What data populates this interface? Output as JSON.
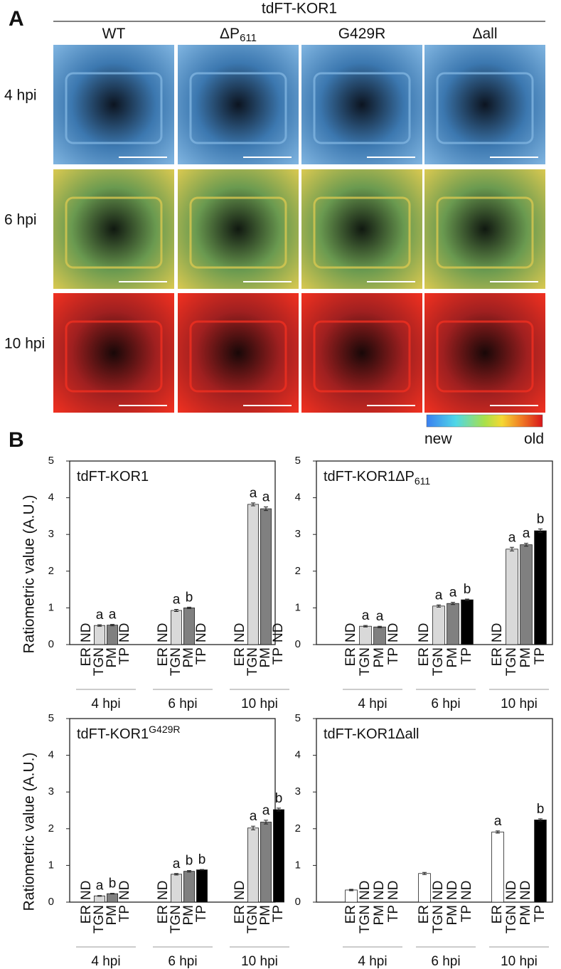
{
  "panel_a": {
    "label": "A",
    "construct": "tdFT-KOR1",
    "columns": [
      {
        "text": "WT"
      },
      {
        "text": "ΔP",
        "subscript": "611"
      },
      {
        "text": "G429R"
      },
      {
        "text": "Δall"
      }
    ],
    "rows": [
      "4 hpi",
      "6 hpi",
      "10 hpi"
    ],
    "colorbar": {
      "low": "new",
      "high": "old"
    }
  },
  "panel_b_label": "B",
  "chart_data": [
    {
      "type": "bar",
      "title": "tdFT-KOR1",
      "ylabel": "Ratiometric value (A.U.)",
      "ylim": [
        0,
        5
      ],
      "yticks": [
        0,
        1,
        2,
        3,
        4,
        5
      ],
      "groups": [
        "4 hpi",
        "6 hpi",
        "10 hpi"
      ],
      "series": [
        {
          "name": "ER",
          "color": "#ffffff",
          "values": [
            null,
            null,
            null
          ],
          "errors": [
            null,
            null,
            null
          ],
          "labels": [
            "ND",
            "ND",
            "ND"
          ]
        },
        {
          "name": "TGN",
          "color": "#d9d9d9",
          "values": [
            0.52,
            0.93,
            3.82
          ],
          "errors": [
            0.02,
            0.03,
            0.04
          ],
          "labels": [
            "a",
            "a",
            "a"
          ]
        },
        {
          "name": "PM",
          "color": "#808080",
          "values": [
            0.53,
            1.0,
            3.7
          ],
          "errors": [
            0.02,
            0.02,
            0.05
          ],
          "labels": [
            "a",
            "b",
            "a"
          ]
        },
        {
          "name": "TP",
          "color": "#000000",
          "values": [
            null,
            null,
            null
          ],
          "errors": [
            null,
            null,
            null
          ],
          "labels": [
            "ND",
            "ND",
            "ND"
          ]
        }
      ]
    },
    {
      "type": "bar",
      "title": "tdFT-KOR1ΔP",
      "title_subscript": "611",
      "ylim": [
        0,
        5
      ],
      "yticks": [
        0,
        1,
        2,
        3,
        4,
        5
      ],
      "groups": [
        "4 hpi",
        "6 hpi",
        "10 hpi"
      ],
      "series": [
        {
          "name": "ER",
          "color": "#ffffff",
          "values": [
            null,
            null,
            null
          ],
          "errors": [
            null,
            null,
            null
          ],
          "labels": [
            "ND",
            "ND",
            "ND"
          ]
        },
        {
          "name": "TGN",
          "color": "#d9d9d9",
          "values": [
            0.5,
            1.05,
            2.6
          ],
          "errors": [
            0.02,
            0.03,
            0.05
          ],
          "labels": [
            "a",
            "a",
            "a"
          ]
        },
        {
          "name": "PM",
          "color": "#808080",
          "values": [
            0.48,
            1.12,
            2.72
          ],
          "errors": [
            0.02,
            0.03,
            0.04
          ],
          "labels": [
            "a",
            "a",
            "a"
          ]
        },
        {
          "name": "TP",
          "color": "#000000",
          "values": [
            null,
            1.22,
            3.1
          ],
          "errors": [
            null,
            0.02,
            0.05
          ],
          "labels": [
            "ND",
            "b",
            "b"
          ]
        }
      ]
    },
    {
      "type": "bar",
      "title": "tdFT-KOR1",
      "title_superscript": "G429R",
      "ylabel": "Ratiometric value (A.U.)",
      "ylim": [
        0,
        5
      ],
      "yticks": [
        0,
        1,
        2,
        3,
        4,
        5
      ],
      "groups": [
        "4 hpi",
        "6 hpi",
        "10 hpi"
      ],
      "series": [
        {
          "name": "ER",
          "color": "#ffffff",
          "values": [
            null,
            null,
            null
          ],
          "errors": [
            null,
            null,
            null
          ],
          "labels": [
            "ND",
            "ND",
            "ND"
          ]
        },
        {
          "name": "TGN",
          "color": "#d9d9d9",
          "values": [
            0.17,
            0.76,
            2.02
          ],
          "errors": [
            0.01,
            0.02,
            0.05
          ],
          "labels": [
            "a",
            "a",
            "a"
          ]
        },
        {
          "name": "PM",
          "color": "#808080",
          "values": [
            0.23,
            0.84,
            2.18
          ],
          "errors": [
            0.01,
            0.02,
            0.05
          ],
          "labels": [
            "b",
            "b",
            "a"
          ]
        },
        {
          "name": "TP",
          "color": "#000000",
          "values": [
            null,
            0.88,
            2.52
          ],
          "errors": [
            null,
            0.01,
            0.04
          ],
          "labels": [
            "ND",
            "b",
            "b"
          ]
        }
      ]
    },
    {
      "type": "bar",
      "title": "tdFT-KOR1Δall",
      "ylim": [
        0,
        5
      ],
      "yticks": [
        0,
        1,
        2,
        3,
        4,
        5
      ],
      "groups": [
        "4 hpi",
        "6 hpi",
        "10 hpi"
      ],
      "series": [
        {
          "name": "ER",
          "color": "#ffffff",
          "values": [
            0.33,
            0.78,
            1.91
          ],
          "errors": [
            0.02,
            0.03,
            0.03
          ],
          "labels": [
            null,
            null,
            "a"
          ]
        },
        {
          "name": "TGN",
          "color": "#d9d9d9",
          "values": [
            null,
            null,
            null
          ],
          "errors": [
            null,
            null,
            null
          ],
          "labels": [
            "ND",
            "ND",
            "ND"
          ]
        },
        {
          "name": "PM",
          "color": "#808080",
          "values": [
            null,
            null,
            null
          ],
          "errors": [
            null,
            null,
            null
          ],
          "labels": [
            "ND",
            "ND",
            "ND"
          ]
        },
        {
          "name": "TP",
          "color": "#000000",
          "values": [
            null,
            null,
            2.24
          ],
          "errors": [
            null,
            null,
            0.03
          ],
          "labels": [
            "ND",
            "ND",
            "b"
          ]
        }
      ]
    }
  ]
}
